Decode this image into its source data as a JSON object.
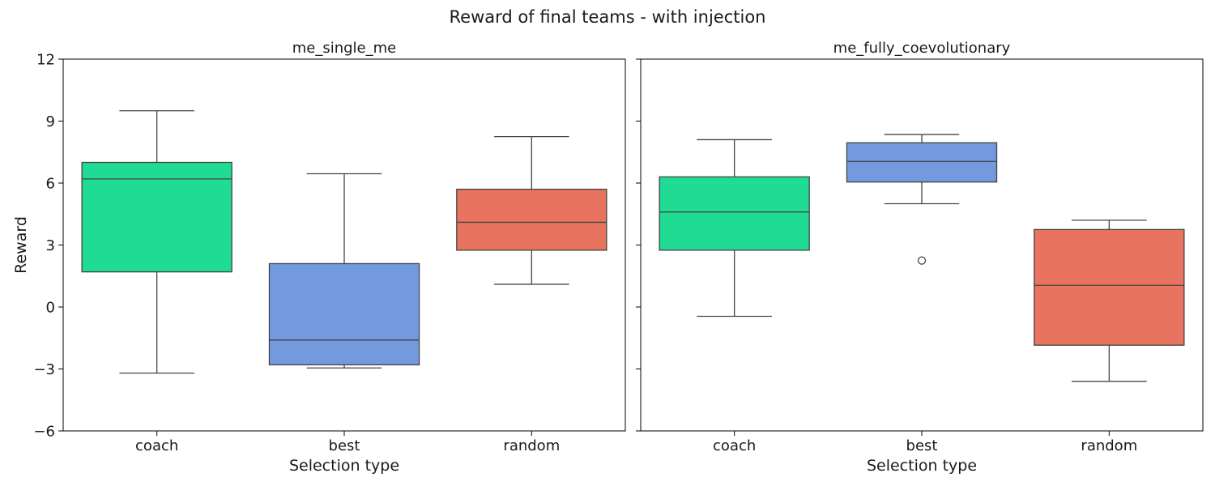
{
  "title": "Reward of final teams - with injection",
  "colors": {
    "coach": "#1fdb93",
    "best": "#739ade",
    "random": "#e8735f",
    "line": "#444444"
  },
  "chart_data": [
    {
      "type": "box",
      "title": "me_single_me",
      "xlabel": "Selection type",
      "ylabel": "Reward",
      "ylim": [
        -6,
        12
      ],
      "yticks": [
        -6,
        -3,
        0,
        3,
        6,
        9,
        12
      ],
      "ytick_labels": [
        "−6",
        "−3",
        "0",
        "3",
        "6",
        "9",
        "12"
      ],
      "categories": [
        "coach",
        "best",
        "random"
      ],
      "boxes": [
        {
          "category": "coach",
          "whisker_low": -3.2,
          "q1": 1.7,
          "median": 6.2,
          "q3": 7.0,
          "whisker_high": 9.5,
          "outliers": []
        },
        {
          "category": "best",
          "whisker_low": -2.95,
          "q1": -2.8,
          "median": -1.6,
          "q3": 2.1,
          "whisker_high": 6.45,
          "outliers": []
        },
        {
          "category": "random",
          "whisker_low": 1.1,
          "q1": 2.75,
          "median": 4.1,
          "q3": 5.7,
          "whisker_high": 8.25,
          "outliers": []
        }
      ]
    },
    {
      "type": "box",
      "title": "me_fully_coevolutionary",
      "xlabel": "Selection type",
      "ylabel": "",
      "ylim": [
        -6,
        12
      ],
      "yticks": [
        -6,
        -3,
        0,
        3,
        6,
        9,
        12
      ],
      "ytick_labels": [],
      "categories": [
        "coach",
        "best",
        "random"
      ],
      "boxes": [
        {
          "category": "coach",
          "whisker_low": -0.45,
          "q1": 2.75,
          "median": 4.6,
          "q3": 6.3,
          "whisker_high": 8.1,
          "outliers": []
        },
        {
          "category": "best",
          "whisker_low": 5.0,
          "q1": 6.05,
          "median": 7.05,
          "q3": 7.95,
          "whisker_high": 8.35,
          "outliers": [
            2.25
          ]
        },
        {
          "category": "random",
          "whisker_low": -3.6,
          "q1": -1.85,
          "median": 1.05,
          "q3": 3.75,
          "whisker_high": 4.2,
          "outliers": []
        }
      ]
    }
  ]
}
